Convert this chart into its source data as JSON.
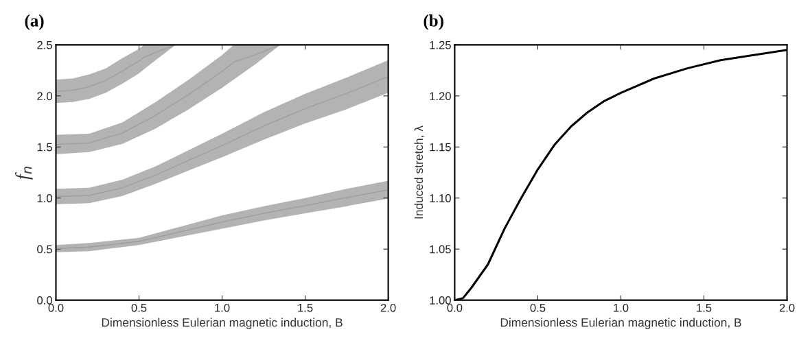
{
  "chart_data": [
    {
      "type": "area",
      "title": "(a)",
      "xlabel": "Dimensionless Eulerian magnetic induction, B",
      "ylabel": "f$_{n}$",
      "xlim": [
        0,
        2
      ],
      "ylim": [
        0,
        2.5
      ],
      "xticks": [
        {
          "value": 0,
          "label": "0.0"
        },
        {
          "value": 0.5,
          "label": "0.5"
        },
        {
          "value": 1,
          "label": "1.0"
        },
        {
          "value": 1.5,
          "label": "1.5"
        },
        {
          "value": 2,
          "label": "2.0"
        }
      ],
      "yticks": [
        {
          "value": 0,
          "label": "0.0"
        },
        {
          "value": 0.5,
          "label": "0.5"
        },
        {
          "value": 1,
          "label": "1.0"
        },
        {
          "value": 1.5,
          "label": "1.5"
        },
        {
          "value": 2,
          "label": "2.0"
        },
        {
          "value": 2.5,
          "label": "2.5"
        }
      ],
      "grid": false,
      "legend": false,
      "series": [
        {
          "type": "line",
          "color": "#9e9e9e",
          "x": [
            0,
            0.2,
            0.5,
            0.75,
            1.0,
            1.25,
            1.5,
            1.75,
            2.0
          ],
          "values": [
            0.505,
            0.52,
            0.575,
            0.67,
            0.765,
            0.85,
            0.925,
            1.005,
            1.08
          ],
          "lower": [
            0.47,
            0.48,
            0.54,
            0.62,
            0.7,
            0.78,
            0.85,
            0.92,
            0.995
          ],
          "upper": [
            0.54,
            0.56,
            0.61,
            0.72,
            0.83,
            0.92,
            1.0,
            1.09,
            1.17
          ]
        },
        {
          "type": "line",
          "color": "#9e9e9e",
          "x": [
            0,
            0.2,
            0.4,
            0.6,
            0.8,
            1.0,
            1.25,
            1.5,
            1.75,
            2.0
          ],
          "values": [
            1.015,
            1.025,
            1.1,
            1.225,
            1.37,
            1.515,
            1.705,
            1.875,
            2.025,
            2.19
          ],
          "lower": [
            0.94,
            0.95,
            1.02,
            1.14,
            1.27,
            1.4,
            1.57,
            1.73,
            1.87,
            2.03
          ],
          "upper": [
            1.09,
            1.1,
            1.18,
            1.31,
            1.47,
            1.63,
            1.84,
            2.02,
            2.18,
            2.35
          ]
        },
        {
          "type": "line",
          "color": "#9e9e9e",
          "x": [
            0,
            0.2,
            0.4,
            0.6,
            0.8,
            1.0,
            1.07,
            1.2,
            1.35
          ],
          "values": [
            1.525,
            1.54,
            1.635,
            1.81,
            2.015,
            2.24,
            2.33,
            2.405,
            2.5
          ],
          "lower": [
            1.43,
            1.45,
            1.53,
            1.68,
            1.87,
            2.08,
            2.16,
            2.31,
            2.5
          ],
          "upper": [
            1.62,
            1.63,
            1.74,
            1.94,
            2.16,
            2.4,
            2.5,
            2.5,
            2.5
          ]
        },
        {
          "type": "line",
          "color": "#9e9e9e",
          "x": [
            0,
            0.1,
            0.2,
            0.3,
            0.4,
            0.5,
            0.53,
            0.6,
            0.72
          ],
          "values": [
            2.045,
            2.055,
            2.09,
            2.15,
            2.245,
            2.34,
            2.38,
            2.425,
            2.5
          ],
          "lower": [
            1.93,
            1.94,
            1.97,
            2.03,
            2.12,
            2.22,
            2.26,
            2.35,
            2.5
          ],
          "upper": [
            2.16,
            2.17,
            2.21,
            2.27,
            2.37,
            2.46,
            2.5,
            2.5,
            2.5
          ]
        }
      ]
    },
    {
      "type": "line",
      "title": "(b)",
      "xlabel": "Dimensionless Eulerian magnetic induction, B",
      "ylabel": "Induced stretch, λ",
      "xlim": [
        0,
        2
      ],
      "ylim": [
        1.0,
        1.25
      ],
      "xticks": [
        {
          "value": 0,
          "label": "0.0"
        },
        0.5,
        {
          "value": 1,
          "label": "1.0"
        },
        1.5,
        {
          "value": 2,
          "label": "2.0"
        }
      ],
      "yticks": [
        {
          "value": 1.0,
          "label": "1.00"
        },
        1.05,
        {
          "value": 1.1,
          "label": "1.10"
        },
        1.15,
        {
          "value": 1.2,
          "label": "1.20"
        },
        1.25
      ],
      "grid": false,
      "legend": false,
      "marker": "none",
      "line_style": "solid",
      "series": [
        {
          "color": "#000000",
          "x": [
            0,
            0.05,
            0.1,
            0.2,
            0.3,
            0.4,
            0.5,
            0.6,
            0.7,
            0.8,
            0.9,
            1.0,
            1.2,
            1.4,
            1.6,
            1.8,
            2.0
          ],
          "values": [
            1.0,
            1.002,
            1.012,
            1.035,
            1.07,
            1.1,
            1.128,
            1.152,
            1.17,
            1.184,
            1.195,
            1.203,
            1.217,
            1.227,
            1.235,
            1.24,
            1.245
          ]
        }
      ]
    }
  ]
}
